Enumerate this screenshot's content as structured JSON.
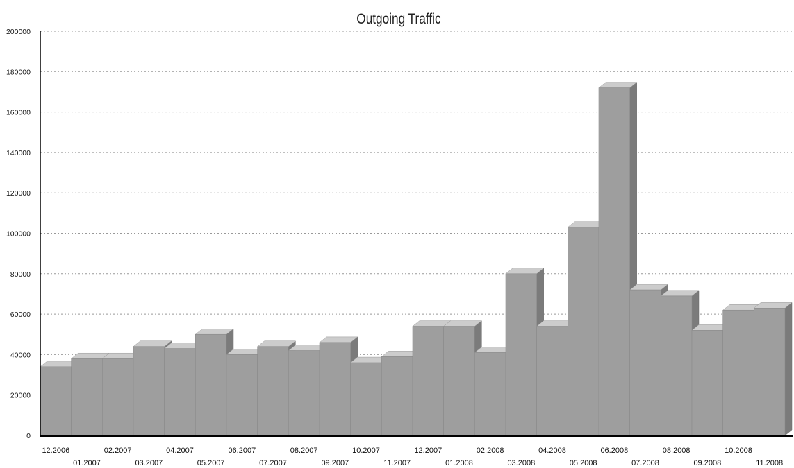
{
  "chart_data": {
    "type": "bar",
    "title": "Outgoing Traffic",
    "xlabel": "",
    "ylabel": "",
    "ylim": [
      0,
      200000
    ],
    "yticks": [
      "0",
      "20000",
      "40000",
      "60000",
      "80000",
      "100000",
      "120000",
      "140000",
      "160000",
      "180000",
      "200000"
    ],
    "grid": true,
    "legend": "none",
    "categories": [
      "12.2006",
      "01.2007",
      "02.2007",
      "03.2007",
      "04.2007",
      "05.2007",
      "06.2007",
      "07.2007",
      "08.2007",
      "09.2007",
      "10.2007",
      "11.2007",
      "12.2007",
      "01.2008",
      "02.2008",
      "03.2008",
      "04.2008",
      "05.2008",
      "06.2008",
      "07.2008",
      "08.2008",
      "09.2008",
      "10.2008",
      "11.2008"
    ],
    "values": [
      34000,
      38000,
      38000,
      44000,
      43000,
      50000,
      40000,
      44000,
      42000,
      46000,
      36000,
      39000,
      54000,
      54000,
      41000,
      80000,
      54000,
      103000,
      172000,
      72000,
      69000,
      52000,
      62000,
      63000
    ],
    "colors": {
      "front": "#9e9e9e",
      "top": "#cccccc",
      "side": "#7b7b7b",
      "grid": "#999999",
      "axis": "#000000"
    }
  }
}
